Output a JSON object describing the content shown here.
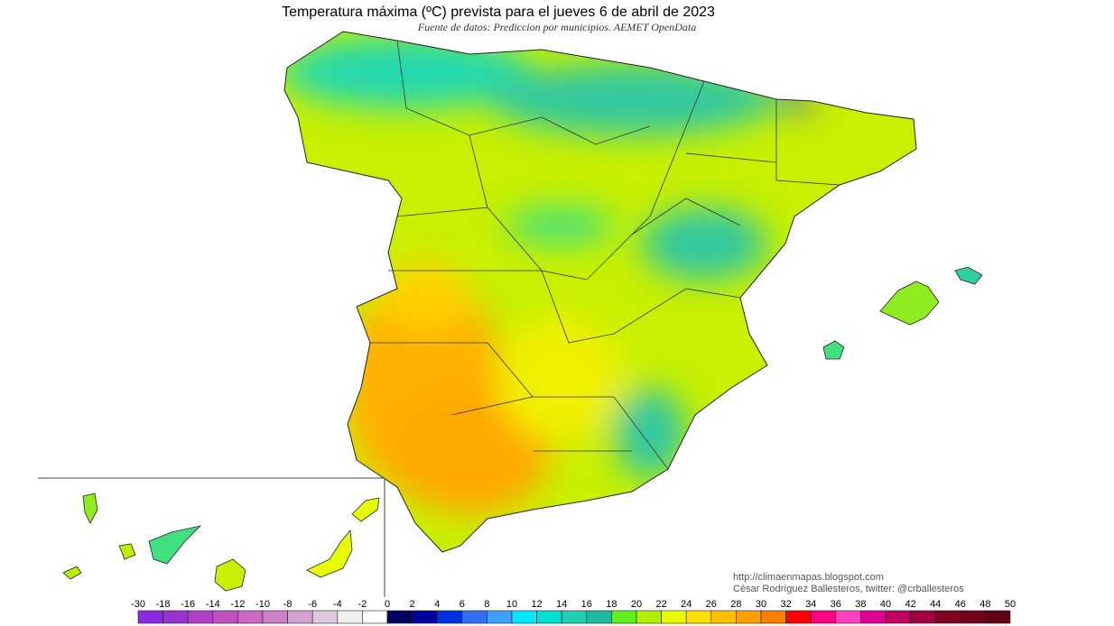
{
  "title": "Temperatura máxima (ºC) prevista para el jueves 6 de abril de 2023",
  "subtitle": "Fuente de datos: Prediccion por municipios. AEMET OpenData",
  "credits": [
    "http://climaenmapas.blogspot.com",
    "César Rodríguez Ballesteros, twitter: @crballesteros"
  ],
  "legend": {
    "labels": [
      -30,
      -18,
      -16,
      -14,
      -12,
      -10,
      -8,
      -6,
      -4,
      -2,
      0,
      2,
      4,
      6,
      8,
      10,
      12,
      14,
      16,
      18,
      20,
      22,
      24,
      26,
      28,
      30,
      32,
      34,
      36,
      38,
      40,
      42,
      44,
      46,
      48,
      50
    ],
    "colors": [
      "#8a2be2",
      "#9b30d0",
      "#b040c8",
      "#c050c0",
      "#c868c0",
      "#cc80c8",
      "#d4a0d0",
      "#e0c8e0",
      "#f0f0f0",
      "#ffffff",
      "#000060",
      "#0000a0",
      "#0030e0",
      "#3070f0",
      "#40a0ff",
      "#00e8ff",
      "#00e0d0",
      "#20d0b0",
      "#20b8a0",
      "#60f020",
      "#b0f000",
      "#e8ff00",
      "#ffe000",
      "#ffc000",
      "#ffa000",
      "#ff8000",
      "#ff0000",
      "#ff0080",
      "#ff40c0",
      "#e00090",
      "#c00060",
      "#a00040",
      "#800020",
      "#700018",
      "#600010"
    ]
  }
}
